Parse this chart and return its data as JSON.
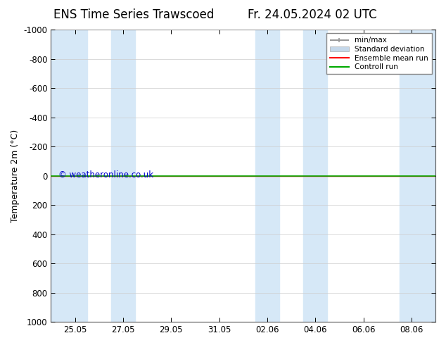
{
  "title_left": "ENS Time Series Trawscoed",
  "title_right": "Fr. 24.05.2024 02 UTC",
  "ylabel": "Temperature 2m (°C)",
  "watermark": "© weatheronline.co.uk",
  "ylim_top": -1000,
  "ylim_bottom": 1000,
  "yticks": [
    -1000,
    -800,
    -600,
    -400,
    -200,
    0,
    200,
    400,
    600,
    800,
    1000
  ],
  "xtick_labels": [
    "25.05",
    "27.05",
    "29.05",
    "31.05",
    "02.06",
    "04.06",
    "06.06",
    "08.06"
  ],
  "xtick_positions": [
    1,
    3,
    5,
    7,
    9,
    11,
    13,
    15
  ],
  "x_min": 0,
  "x_max": 16,
  "shaded_bands": [
    [
      0.0,
      1.5
    ],
    [
      2.5,
      3.5
    ],
    [
      8.5,
      9.5
    ],
    [
      10.5,
      11.5
    ],
    [
      14.5,
      16.0
    ]
  ],
  "shaded_color": "#d6e8f7",
  "control_run_y": 0,
  "ensemble_mean_y": 0,
  "minmax_color": "#999999",
  "std_dev_color": "#c5d8ea",
  "ensemble_mean_color": "#ff0000",
  "control_run_color": "#00aa00",
  "background_color": "#ffffff",
  "grid_color": "#cccccc",
  "title_fontsize": 12,
  "axis_fontsize": 9,
  "tick_fontsize": 8.5,
  "watermark_color": "#0000cc"
}
